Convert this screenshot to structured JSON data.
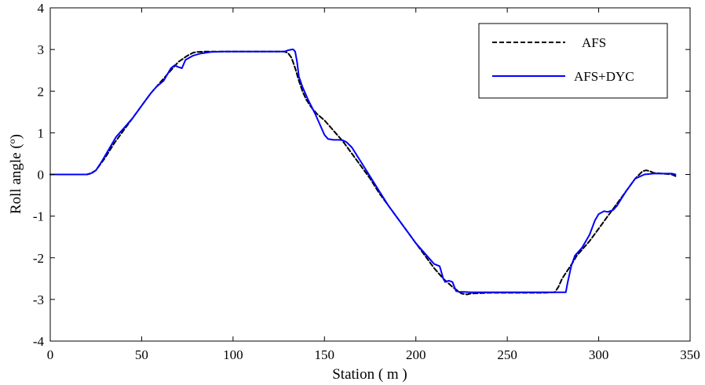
{
  "chart_data": {
    "type": "line",
    "xlabel": "Station ( m )",
    "ylabel": "Roll angle (",
    "ylabel_sup": "o",
    "ylabel_close": ")",
    "xlim": [
      0,
      350
    ],
    "ylim": [
      -4,
      4
    ],
    "xticks": [
      0,
      50,
      100,
      150,
      200,
      250,
      300,
      350
    ],
    "yticks": [
      4,
      3,
      2,
      1,
      0,
      -1,
      -2,
      -3,
      -4
    ],
    "grid": false,
    "legend_position": "top-right",
    "series": [
      {
        "name": "AFS",
        "color": "#000000",
        "style": "dashed",
        "x": [
          0,
          20,
          22,
          25,
          30,
          35,
          40,
          45,
          50,
          55,
          60,
          65,
          70,
          75,
          78,
          80,
          85,
          90,
          100,
          110,
          120,
          128,
          130,
          132,
          134,
          136,
          138,
          140,
          143,
          146,
          150,
          155,
          160,
          165,
          170,
          175,
          180,
          185,
          190,
          195,
          200,
          205,
          210,
          215,
          220,
          225,
          228,
          230,
          235,
          240,
          245,
          250,
          260,
          270,
          276,
          278,
          280,
          283,
          286,
          288,
          290,
          295,
          300,
          305,
          310,
          315,
          320,
          324,
          326,
          328,
          330,
          340,
          342
        ],
        "y": [
          0,
          0,
          0.02,
          0.1,
          0.4,
          0.75,
          1.05,
          1.35,
          1.65,
          1.95,
          2.2,
          2.45,
          2.7,
          2.85,
          2.92,
          2.94,
          2.95,
          2.95,
          2.95,
          2.95,
          2.95,
          2.95,
          2.92,
          2.8,
          2.55,
          2.25,
          2.0,
          1.8,
          1.6,
          1.45,
          1.3,
          1.05,
          0.8,
          0.5,
          0.2,
          -0.1,
          -0.45,
          -0.75,
          -1.05,
          -1.35,
          -1.65,
          -1.95,
          -2.25,
          -2.5,
          -2.7,
          -2.86,
          -2.88,
          -2.86,
          -2.85,
          -2.84,
          -2.84,
          -2.84,
          -2.84,
          -2.84,
          -2.83,
          -2.7,
          -2.5,
          -2.3,
          -2.1,
          -1.95,
          -1.85,
          -1.6,
          -1.3,
          -1.0,
          -0.7,
          -0.4,
          -0.1,
          0.08,
          0.1,
          0.08,
          0.04,
          0.0,
          -0.04
        ]
      },
      {
        "name": "AFS+DYC",
        "color": "#0000ff",
        "style": "solid",
        "x": [
          0,
          20,
          23,
          25,
          28,
          32,
          36,
          40,
          45,
          50,
          55,
          58,
          62,
          66,
          68,
          70,
          72,
          74,
          78,
          82,
          88,
          95,
          100,
          110,
          120,
          128,
          130,
          132,
          133,
          134,
          135,
          136,
          138,
          141,
          145,
          148,
          150,
          152,
          155,
          158,
          160,
          162,
          165,
          170,
          175,
          180,
          185,
          190,
          195,
          200,
          205,
          210,
          213,
          215,
          216,
          218,
          220,
          222,
          224,
          226,
          230,
          240,
          250,
          260,
          270,
          280,
          282,
          283,
          285,
          287,
          289,
          291,
          295,
          298,
          300,
          303,
          305,
          308,
          310,
          315,
          320,
          325,
          330,
          340,
          342
        ],
        "y": [
          0,
          0,
          0.04,
          0.1,
          0.3,
          0.6,
          0.9,
          1.1,
          1.35,
          1.65,
          1.95,
          2.1,
          2.25,
          2.55,
          2.62,
          2.58,
          2.55,
          2.75,
          2.85,
          2.9,
          2.94,
          2.95,
          2.95,
          2.95,
          2.95,
          2.95,
          2.98,
          3.0,
          3.0,
          2.95,
          2.7,
          2.35,
          2.1,
          1.8,
          1.45,
          1.15,
          0.95,
          0.85,
          0.83,
          0.83,
          0.82,
          0.78,
          0.65,
          0.3,
          -0.05,
          -0.4,
          -0.75,
          -1.05,
          -1.35,
          -1.65,
          -1.9,
          -2.15,
          -2.2,
          -2.5,
          -2.58,
          -2.55,
          -2.58,
          -2.8,
          -2.82,
          -2.82,
          -2.83,
          -2.83,
          -2.83,
          -2.83,
          -2.83,
          -2.83,
          -2.83,
          -2.6,
          -2.2,
          -1.95,
          -1.85,
          -1.75,
          -1.45,
          -1.1,
          -0.95,
          -0.88,
          -0.9,
          -0.85,
          -0.75,
          -0.4,
          -0.1,
          0.0,
          0.02,
          0.02,
          0.0
        ]
      }
    ]
  }
}
